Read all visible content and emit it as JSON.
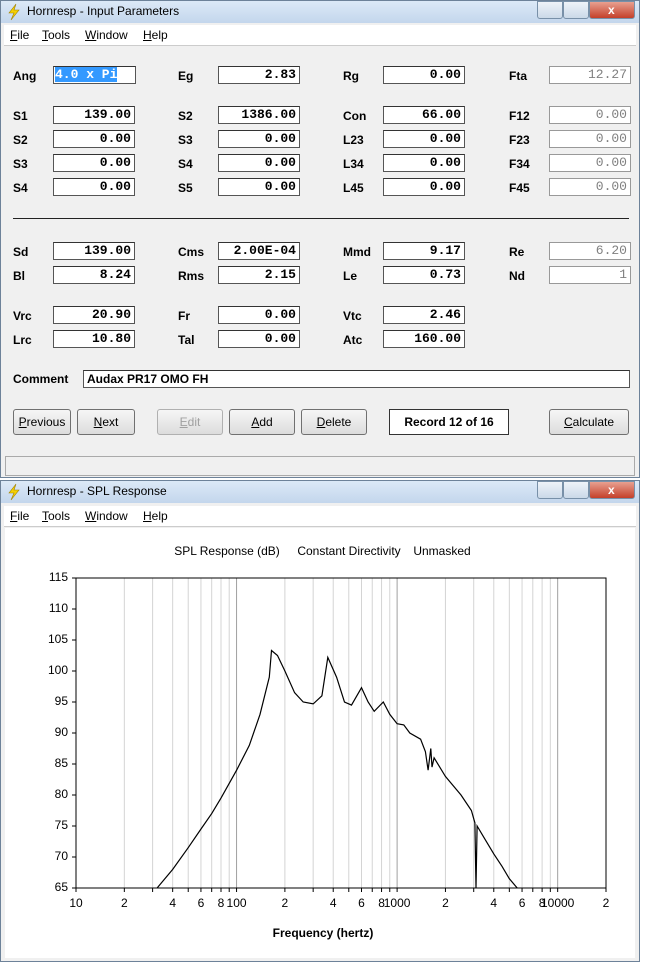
{
  "input_window": {
    "title": "Hornresp - Input Parameters",
    "menu": [
      "File",
      "Tools",
      "Window",
      "Help"
    ],
    "rows": [
      [
        {
          "label": "Ang",
          "value": "4.0 x Pi"
        },
        {
          "label": "Eg",
          "value": "2.83"
        },
        {
          "label": "Rg",
          "value": "0.00"
        },
        {
          "label": "Fta",
          "value": "12.27"
        }
      ],
      [
        {
          "label": "S1",
          "value": "139.00"
        },
        {
          "label": "S2",
          "value": "1386.00"
        },
        {
          "label": "Con",
          "value": "66.00"
        },
        {
          "label": "F12",
          "value": "0.00"
        }
      ],
      [
        {
          "label": "S2",
          "value": "0.00"
        },
        {
          "label": "S3",
          "value": "0.00"
        },
        {
          "label": "L23",
          "value": "0.00"
        },
        {
          "label": "F23",
          "value": "0.00"
        }
      ],
      [
        {
          "label": "S3",
          "value": "0.00"
        },
        {
          "label": "S4",
          "value": "0.00"
        },
        {
          "label": "L34",
          "value": "0.00"
        },
        {
          "label": "F34",
          "value": "0.00"
        }
      ],
      [
        {
          "label": "S4",
          "value": "0.00"
        },
        {
          "label": "S5",
          "value": "0.00"
        },
        {
          "label": "L45",
          "value": "0.00"
        },
        {
          "label": "F45",
          "value": "0.00"
        }
      ],
      [
        {
          "label": "Sd",
          "value": "139.00"
        },
        {
          "label": "Cms",
          "value": "2.00E-04"
        },
        {
          "label": "Mmd",
          "value": "9.17"
        },
        {
          "label": "Re",
          "value": "6.20"
        }
      ],
      [
        {
          "label": "Bl",
          "value": "8.24"
        },
        {
          "label": "Rms",
          "value": "2.15"
        },
        {
          "label": "Le",
          "value": "0.73"
        },
        {
          "label": "Nd",
          "value": "1"
        }
      ],
      [
        {
          "label": "Vrc",
          "value": "20.90"
        },
        {
          "label": "Fr",
          "value": "0.00"
        },
        {
          "label": "Vtc",
          "value": "2.46"
        }
      ],
      [
        {
          "label": "Lrc",
          "value": "10.80"
        },
        {
          "label": "Tal",
          "value": "0.00"
        },
        {
          "label": "Atc",
          "value": "160.00"
        }
      ]
    ],
    "comment_label": "Comment",
    "comment": "Audax PR17 OMO FH",
    "buttons": [
      "Previous",
      "Next",
      "Edit",
      "Add",
      "Delete"
    ],
    "record": "Record 12 of 16",
    "calculate": "Calculate"
  },
  "spl_window": {
    "title": "Hornresp - SPL Response",
    "menu": [
      "File",
      "Tools",
      "Window",
      "Help"
    ]
  },
  "chart_data": {
    "type": "line",
    "title": "SPL Response (dB)",
    "annotations": [
      "Constant Directivity",
      "Unmasked"
    ],
    "x_label": "Frequency (hertz)",
    "color": "#000000",
    "log_x": true,
    "grid": "x",
    "x": [
      32,
      40,
      50,
      60,
      70,
      80,
      100,
      120,
      140,
      160,
      165,
      180,
      200,
      230,
      260,
      300,
      340,
      370,
      420,
      470,
      520,
      600,
      660,
      720,
      820,
      900,
      1000,
      1100,
      1200,
      1400,
      1500,
      1560,
      1620,
      1650,
      1700,
      2000,
      2500,
      2900,
      3050,
      3100,
      3150,
      3500,
      4000,
      4500,
      5000,
      5600
    ],
    "values": [
      65,
      68,
      71.5,
      74.5,
      77,
      79.5,
      84,
      88,
      93,
      99,
      103.3,
      102.5,
      100,
      96.5,
      95,
      94.7,
      96,
      102.2,
      99,
      95,
      94.5,
      97.3,
      95,
      93.5,
      95,
      93,
      91.5,
      91.3,
      90,
      89,
      87,
      84,
      87.5,
      84.5,
      86,
      83,
      80,
      77.5,
      75.5,
      65,
      75,
      73,
      70.5,
      68.5,
      66.5,
      65
    ],
    "xlim": [
      10,
      20000
    ],
    "ylim": [
      65,
      115
    ],
    "yticks": [
      65,
      70,
      75,
      80,
      85,
      90,
      95,
      100,
      105,
      110,
      115
    ],
    "xticks": [
      10,
      {
        "value": 20,
        "label": "2"
      },
      {
        "value": 30,
        "label": null
      },
      {
        "value": 40,
        "label": "4"
      },
      {
        "value": 50,
        "label": null
      },
      {
        "value": 60,
        "label": "6"
      },
      {
        "value": 70,
        "label": null
      },
      {
        "value": 80,
        "label": "8"
      },
      {
        "value": 90,
        "label": null
      },
      100,
      {
        "value": 200,
        "label": "2"
      },
      {
        "value": 300,
        "label": null
      },
      {
        "value": 400,
        "label": "4"
      },
      {
        "value": 500,
        "label": null
      },
      {
        "value": 600,
        "label": "6"
      },
      {
        "value": 700,
        "label": null
      },
      {
        "value": 800,
        "label": "8"
      },
      {
        "value": 900,
        "label": null
      },
      1000,
      {
        "value": 2000,
        "label": "2"
      },
      {
        "value": 3000,
        "label": null
      },
      {
        "value": 4000,
        "label": "4"
      },
      {
        "value": 5000,
        "label": null
      },
      {
        "value": 6000,
        "label": "6"
      },
      {
        "value": 7000,
        "label": null
      },
      {
        "value": 8000,
        "label": "8"
      },
      {
        "value": 9000,
        "label": null
      },
      10000,
      {
        "value": 20000,
        "label": "2"
      }
    ]
  }
}
